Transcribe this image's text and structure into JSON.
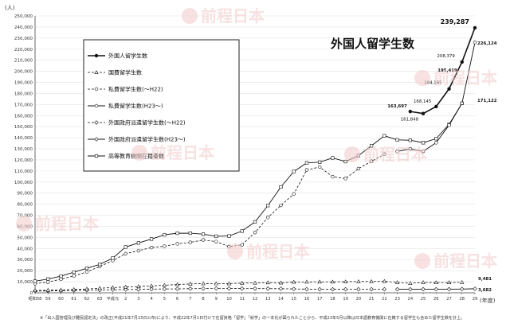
{
  "watermark": {
    "text": "前程日本"
  },
  "chart_data": {
    "type": "line",
    "title": "外国人留学生数",
    "ylabel": "(人)",
    "xlabel": "(年度)",
    "ylim": [
      0,
      250000
    ],
    "yticks": [
      0,
      10000,
      20000,
      30000,
      40000,
      50000,
      60000,
      70000,
      80000,
      90000,
      100000,
      110000,
      120000,
      130000,
      140000,
      150000,
      160000,
      170000,
      180000,
      190000,
      200000,
      210000,
      220000,
      230000,
      240000,
      250000
    ],
    "ytick_labels": [
      "0",
      "10,000",
      "20,000",
      "30,000",
      "40,000",
      "50,000",
      "60,000",
      "70,000",
      "80,000",
      "90,000",
      "100,000",
      "110,000",
      "120,000",
      "130,000",
      "140,000",
      "150,000",
      "160,000",
      "170,000",
      "180,000",
      "190,000",
      "200,000",
      "210,000",
      "220,000",
      "230,000",
      "240,000",
      "250,000"
    ],
    "x": [
      "昭和58",
      "59",
      "60",
      "61",
      "62",
      "63",
      "平成元",
      "2",
      "3",
      "4",
      "5",
      "6",
      "7",
      "8",
      "9",
      "10",
      "11",
      "12",
      "13",
      "14",
      "15",
      "16",
      "17",
      "18",
      "19",
      "20",
      "21",
      "22",
      "23",
      "24",
      "25",
      "26",
      "27",
      "28",
      "29"
    ],
    "legend_position": "top-left",
    "series": [
      {
        "name": "外国人留学生数",
        "style": "solid-filled",
        "values": [
          null,
          null,
          null,
          null,
          null,
          null,
          null,
          null,
          null,
          null,
          null,
          null,
          null,
          null,
          null,
          null,
          null,
          null,
          null,
          null,
          null,
          null,
          null,
          null,
          null,
          null,
          null,
          null,
          null,
          163697,
          161848,
          168145,
          184155,
          208379,
          239287
        ]
      },
      {
        "name": "国費留学生数",
        "style": "dash-triangle",
        "values": [
          2082,
          2345,
          2502,
          3077,
          3459,
          4118,
          4759,
          5219,
          5715,
          6227,
          6880,
          7453,
          8040,
          8323,
          8250,
          8323,
          8792,
          8930,
          9173,
          9009,
          9746,
          9804,
          9891,
          9869,
          10020,
          10168,
          10229,
          10349,
          9396,
          8588,
          9399,
          9223,
          9286,
          9481,
          null
        ]
      },
      {
        "name": "私費留学生数(～H22)",
        "style": "dash-circle",
        "values": [
          8270,
          9690,
          12330,
          15270,
          18870,
          23730,
          29100,
          35340,
          38060,
          40900,
          42030,
          44280,
          45540,
          47700,
          46220,
          41700,
          43360,
          54480,
          68000,
          79000,
          89200,
          110960,
          113600,
          104810,
          103190,
          112120,
          118730,
          125100,
          null,
          null,
          null,
          null,
          null,
          null,
          null
        ]
      },
      {
        "name": "私費留学生数(H23～)",
        "style": "solid-open-circle",
        "values": [
          null,
          null,
          null,
          null,
          null,
          null,
          null,
          null,
          null,
          null,
          null,
          null,
          null,
          null,
          null,
          null,
          null,
          null,
          null,
          null,
          null,
          null,
          null,
          null,
          null,
          null,
          null,
          null,
          127620,
          130000,
          127770,
          135519,
          151327,
          171122,
          226124
        ]
      },
      {
        "name": "外国政府派遣留学生数(～H22)",
        "style": "dash-diamond",
        "values": [
          1580,
          1703,
          1978,
          2122,
          2364,
          2522,
          2749,
          2927,
          3077,
          3311,
          3505,
          3530,
          3750,
          3895,
          3983,
          3933,
          3872,
          3865,
          3750,
          3720,
          3460,
          3338,
          3232,
          3182,
          3217,
          3223,
          3257,
          3186,
          null,
          null,
          null,
          null,
          null,
          null,
          null
        ]
      },
      {
        "name": "外国政府派遣留学生数(H23～)",
        "style": "solid-open-diamond",
        "values": [
          null,
          null,
          null,
          null,
          null,
          null,
          null,
          null,
          null,
          null,
          null,
          null,
          null,
          null,
          null,
          null,
          null,
          null,
          null,
          null,
          null,
          null,
          null,
          null,
          null,
          null,
          null,
          null,
          3200,
          3196,
          3207,
          3213,
          3303,
          3390,
          3682
        ]
      },
      {
        "name": "高等教育機関在籍者数",
        "style": "solid-open-square",
        "values": [
          10428,
          12410,
          15009,
          18631,
          22154,
          25643,
          31251,
          41347,
          45066,
          48561,
          52405,
          53787,
          53847,
          52921,
          51047,
          51298,
          55755,
          64011,
          78812,
          95550,
          109508,
          117302,
          117927,
          121812,
          118498,
          123829,
          132720,
          141774,
          138075,
          137756,
          135519,
          139185,
          152062,
          171122,
          null
        ]
      }
    ],
    "annotations": [
      "163,697",
      "161,848",
      "168,145",
      "184,155",
      "208,379",
      "239,287",
      "226,124",
      "195,419",
      "171,122",
      "9,481",
      "3,682"
    ],
    "footnote": "※「出入国管理及び難民認定法」の改正(平成21年7月15日公布)により、平成22年7月1日付けで在留資格「留学」「就学」の一本化が図られたことから、平成23年5月以降は日本語教育機関に在籍する留学生も含めた留学生数を計上。"
  }
}
